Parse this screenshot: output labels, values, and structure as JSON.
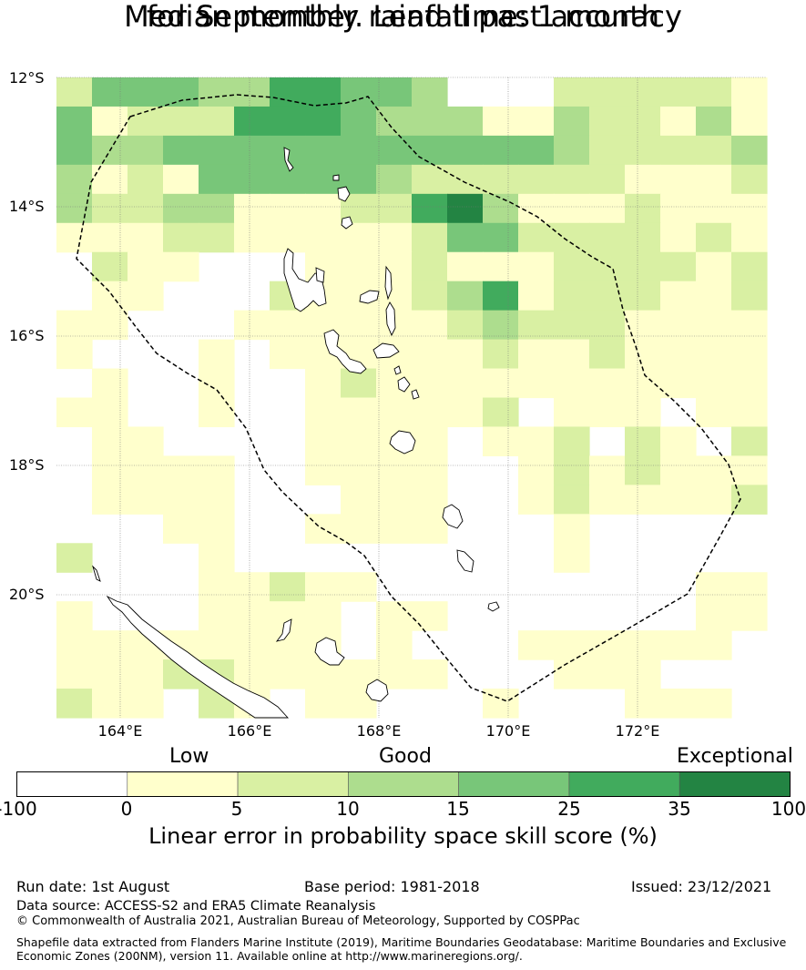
{
  "title": {
    "line1": "Median monthly rainfall past accuracy",
    "line2": "for September. Lead time: 1 month"
  },
  "map": {
    "lat_labels": [
      "12°S",
      "14°S",
      "16°S",
      "18°S",
      "20°S"
    ],
    "lon_labels": [
      "164°E",
      "166°E",
      "168°E",
      "170°E",
      "172°E"
    ],
    "grid_rows": [
      "24443355443000222221",
      "41222555433311322131",
      "43344444444444322223",
      "31214444432222221112",
      "32233111225631112111",
      "11122111112442222121",
      "02110001112111222212",
      "01100021112351222112",
      "11000111111232221111",
      "10001011111121121111",
      "01001001211111111111",
      "11001001111120111011",
      "01100001111011202102",
      "01111001111001212111",
      "01111000111001211112",
      "00011001111000100000",
      "20001000000000100000",
      "00001121100000000011",
      "10001111011000000011",
      "11111111010001111110",
      "11122111111000111000",
      "21102101100010001110"
    ],
    "legend_colors": [
      "#ffffff",
      "#ffffcc",
      "#d9f0a3",
      "#addd8e",
      "#78c679",
      "#41ab5d",
      "#238443"
    ]
  },
  "colorbar": {
    "category_labels": [
      "Low",
      "Good",
      "Exceptional"
    ],
    "tick_labels": [
      "-100",
      "0",
      "5",
      "10",
      "15",
      "25",
      "35",
      "100"
    ],
    "title": "Linear error in probability space skill score (%)"
  },
  "footer": {
    "run_date": "Run date: 1st August",
    "base_period": "Base period: 1981-2018",
    "issued": "Issued: 23/12/2021",
    "data_source": "Data source: ACCESS-S2 and ERA5 Climate Reanalysis",
    "copyright": "© Commonwealth of Australia 2021, Australian Bureau of Meteorology, Supported by COSPPac",
    "shapefile_line1": "Shapefile data extracted from Flanders Marine Institute (2019), Maritime Boundaries Geodatabase: Maritime Boundaries and Exclusive",
    "shapefile_line2": "Economic Zones (200NM), version 11. Available online at http://www.marineregions.org/."
  }
}
